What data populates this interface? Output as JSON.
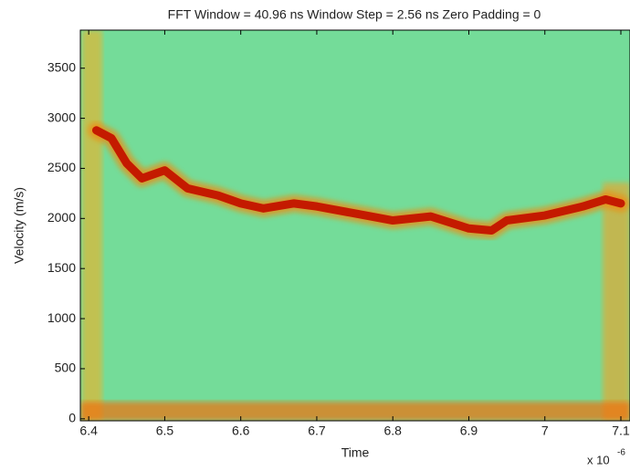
{
  "chart_data": {
    "type": "line",
    "title": "FFT Window = 40.96 ns Window Step = 2.56 ns Zero Padding  = 0",
    "x_label": "Time",
    "y_label": "Velocity (m/s)",
    "x_multiplier": "x 10",
    "x_multiplier_exponent": "-6",
    "x": [
      6.41,
      6.43,
      6.45,
      6.47,
      6.5,
      6.53,
      6.57,
      6.6,
      6.63,
      6.67,
      6.7,
      6.75,
      6.8,
      6.85,
      6.9,
      6.93,
      6.95,
      7.0,
      7.05,
      7.08,
      7.1
    ],
    "series": [
      {
        "color": "#c41a00",
        "values": [
          2880,
          2800,
          2550,
          2400,
          2480,
          2300,
          2230,
          2150,
          2100,
          2150,
          2120,
          2050,
          1980,
          2020,
          1900,
          1880,
          1980,
          2030,
          2120,
          2190,
          2150
        ]
      }
    ],
    "xlim": [
      6.389,
      7.112
    ],
    "ylim": [
      -20,
      3880
    ],
    "xticks": [
      6.4,
      6.5,
      6.6,
      6.7,
      6.8,
      6.9,
      7,
      7.1
    ],
    "yticks": [
      0,
      500,
      1000,
      1500,
      2000,
      2500,
      3000,
      3500
    ]
  }
}
